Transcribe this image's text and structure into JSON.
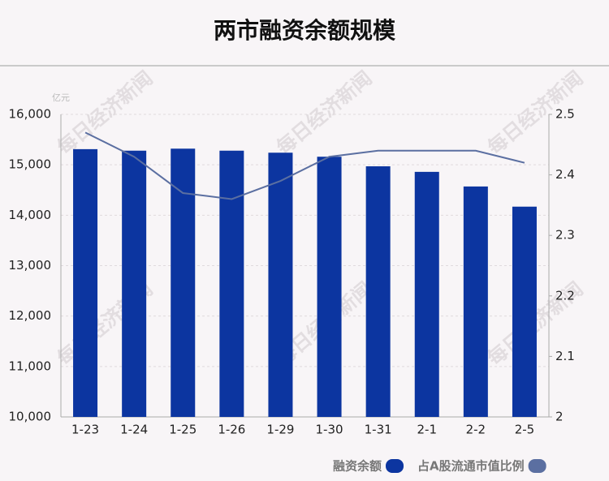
{
  "chart_data": {
    "type": "bar_line",
    "title": "两市融资余额规模",
    "y_unit": "亿元",
    "watermark": "每日经济新闻",
    "categories": [
      "1-23",
      "1-24",
      "1-25",
      "1-26",
      "1-29",
      "1-30",
      "1-31",
      "2-1",
      "2-2",
      "2-5"
    ],
    "series": [
      {
        "name": "融资余额",
        "type": "bar",
        "color": "#0c35a0",
        "values": [
          15310,
          15280,
          15320,
          15280,
          15240,
          15160,
          14970,
          14860,
          14570,
          14170
        ]
      },
      {
        "name": "占A股流通市值比例",
        "type": "line",
        "axis": "y2",
        "color": "#5b6fa1",
        "values": [
          2.47,
          2.43,
          2.37,
          2.36,
          2.39,
          2.43,
          2.44,
          2.44,
          2.44,
          2.42
        ]
      }
    ],
    "ylim": [
      10000,
      16000
    ],
    "yticks": [
      {
        "value": 10000,
        "label": "10,000"
      },
      {
        "value": 11000,
        "label": "11,000"
      },
      {
        "value": 12000,
        "label": "12,000"
      },
      {
        "value": 13000,
        "label": "13,000"
      },
      {
        "value": 14000,
        "label": "14,000"
      },
      {
        "value": 15000,
        "label": "15,000"
      },
      {
        "value": 16000,
        "label": "16,000"
      }
    ],
    "y2lim": [
      2,
      2.5
    ],
    "y2ticks": [
      2,
      2.1,
      2.2,
      2.3,
      2.4,
      2.5
    ],
    "grid": true,
    "legend": "bottom-right"
  }
}
